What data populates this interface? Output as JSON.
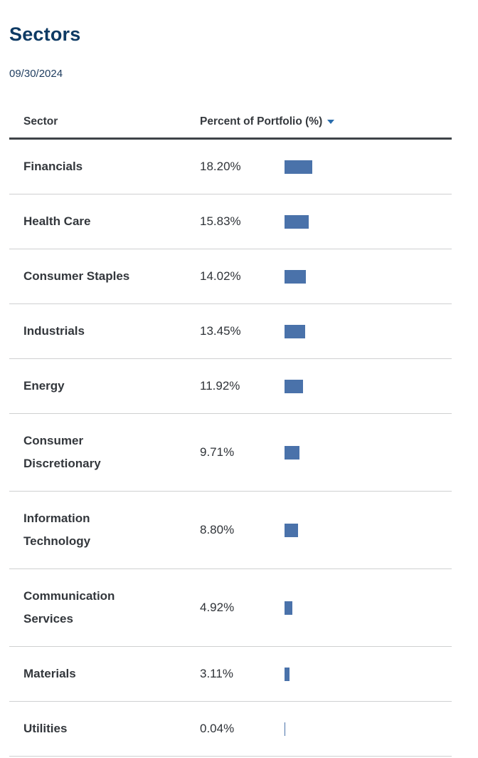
{
  "title": "Sectors",
  "as_of_date": "09/30/2024",
  "colors": {
    "title_navy": "#0e3a64",
    "bar_blue": "#4a72aa",
    "sort_caret_blue": "#2a6dad",
    "header_rule_dark": "#3f4348",
    "row_rule_light": "#cfd0d1"
  },
  "table": {
    "columns": [
      {
        "label": "Sector"
      },
      {
        "label": "Percent of Portfolio (%)",
        "sorted": "descending"
      }
    ],
    "rows": [
      {
        "sector": "Financials",
        "percent": "18.20%",
        "value": 18.2
      },
      {
        "sector": "Health Care",
        "percent": "15.83%",
        "value": 15.83
      },
      {
        "sector": "Consumer Staples",
        "percent": "14.02%",
        "value": 14.02
      },
      {
        "sector": "Industrials",
        "percent": "13.45%",
        "value": 13.45
      },
      {
        "sector": "Energy",
        "percent": "11.92%",
        "value": 11.92
      },
      {
        "sector": "Consumer Discretionary",
        "percent": "9.71%",
        "value": 9.71
      },
      {
        "sector": "Information Technology",
        "percent": "8.80%",
        "value": 8.8
      },
      {
        "sector": "Communication Services",
        "percent": "4.92%",
        "value": 4.92
      },
      {
        "sector": "Materials",
        "percent": "3.11%",
        "value": 3.11
      },
      {
        "sector": "Utilities",
        "percent": "0.04%",
        "value": 0.04
      }
    ]
  },
  "chart_data": {
    "type": "bar",
    "orientation": "horizontal",
    "title": "Sectors",
    "subtitle": "09/30/2024",
    "xlabel": "Percent of Portfolio (%)",
    "ylabel": "Sector",
    "categories": [
      "Financials",
      "Health Care",
      "Consumer Staples",
      "Industrials",
      "Energy",
      "Consumer Discretionary",
      "Information Technology",
      "Communication Services",
      "Materials",
      "Utilities"
    ],
    "values": [
      18.2,
      15.83,
      14.02,
      13.45,
      11.92,
      9.71,
      8.8,
      4.92,
      3.11,
      0.04
    ],
    "value_format": "percent",
    "sort": "descending",
    "grid": false,
    "legend": false,
    "xlim": [
      0,
      100
    ],
    "bar_color": "#4a72aa"
  }
}
